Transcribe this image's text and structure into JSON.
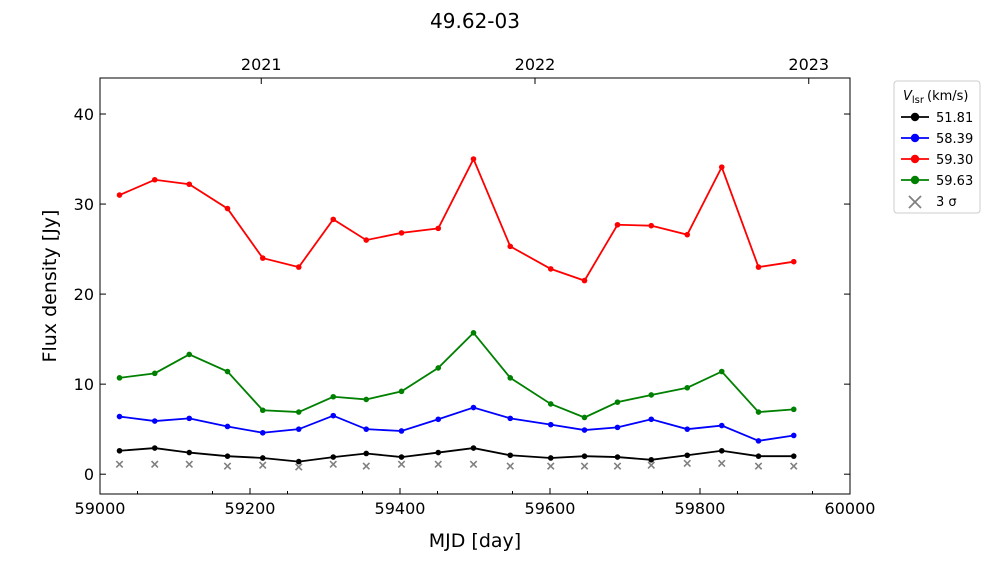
{
  "chart_data": {
    "type": "line",
    "title": "49.62-03",
    "xlabel": "MJD [day]",
    "ylabel": "Flux density [Jy]",
    "xlim": [
      59000,
      60000
    ],
    "ylim": [
      -2.2,
      44
    ],
    "x_ticks": [
      59000,
      59200,
      59400,
      59600,
      59800,
      60000
    ],
    "y_ticks": [
      0,
      10,
      20,
      30,
      40
    ],
    "top_axis": {
      "ticks": [
        {
          "label": "2021",
          "mjd": 59215
        },
        {
          "label": "2022",
          "mjd": 59580
        },
        {
          "label": "2023",
          "mjd": 59945
        }
      ]
    },
    "legend": {
      "title_main": "V",
      "title_sub": "lsr",
      "title_unit": "(km/s)",
      "placement": "outside-right",
      "sigma_label": "3 σ"
    },
    "x": [
      59026,
      59073,
      59119,
      59170,
      59217,
      59265,
      59311,
      59355,
      59402,
      59451,
      59498,
      59547,
      59601,
      59646,
      59690,
      59735,
      59783,
      59829,
      59878,
      59925
    ],
    "series": [
      {
        "name": "51.81",
        "color": "#000000",
        "values": [
          2.6,
          2.9,
          2.4,
          2.0,
          1.8,
          1.4,
          1.9,
          2.3,
          1.9,
          2.4,
          2.9,
          2.1,
          1.8,
          2.0,
          1.9,
          1.6,
          2.1,
          2.6,
          2.0,
          2.0
        ]
      },
      {
        "name": "58.39",
        "color": "#0000ff",
        "values": [
          6.4,
          5.9,
          6.2,
          5.3,
          4.6,
          5.0,
          6.5,
          5.0,
          4.8,
          6.1,
          7.4,
          6.2,
          5.5,
          4.9,
          5.2,
          6.1,
          5.0,
          5.4,
          3.7,
          4.3
        ]
      },
      {
        "name": "59.30",
        "color": "#ff0000",
        "values": [
          31.0,
          32.7,
          32.2,
          29.5,
          24.0,
          23.0,
          28.3,
          26.0,
          26.8,
          27.3,
          35.0,
          25.3,
          22.8,
          21.5,
          27.7,
          27.6,
          26.6,
          34.1,
          23.0,
          23.6
        ]
      },
      {
        "name": "59.63",
        "color": "#008000",
        "values": [
          10.7,
          11.2,
          13.3,
          11.4,
          7.1,
          6.9,
          8.6,
          8.3,
          9.2,
          11.8,
          15.7,
          10.7,
          7.8,
          6.3,
          8.0,
          8.8,
          9.6,
          11.4,
          6.9,
          7.2
        ]
      }
    ],
    "sigma3": {
      "name": "3 σ",
      "color": "#808080",
      "values": [
        1.1,
        1.1,
        1.1,
        0.9,
        1.0,
        0.8,
        1.1,
        0.9,
        1.1,
        1.1,
        1.1,
        0.9,
        0.9,
        0.9,
        0.9,
        1.0,
        1.2,
        1.2,
        0.9,
        0.9
      ]
    },
    "grid": false
  }
}
